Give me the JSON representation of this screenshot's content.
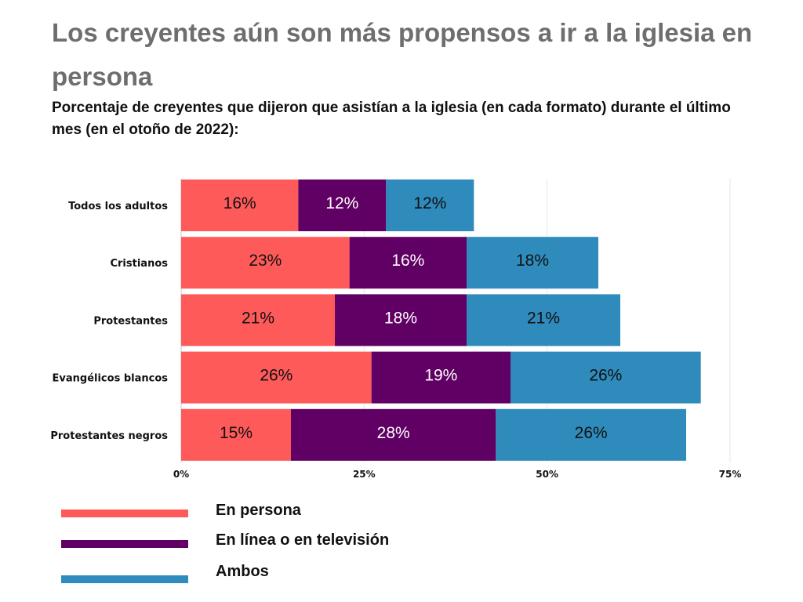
{
  "title": "Los creyentes aún son más propensos a ir a la iglesia en persona",
  "subtitle": " Porcentaje de creyentes que dijeron que asistían a la iglesia (en cada formato) durante el último mes (en el otoño de 2022):",
  "chart_data": {
    "type": "bar",
    "orientation": "horizontal",
    "stacked": true,
    "title": "Los creyentes aún son más propensos a ir a la iglesia en persona",
    "subtitle": "Porcentaje de creyentes que dijeron que asistían a la iglesia (en cada formato) durante el último mes (en el otoño de 2022):",
    "categories": [
      "Todos los adultos",
      "Cristianos",
      "Protestantes",
      "Evangélicos blancos",
      "Protestantes negros"
    ],
    "series": [
      {
        "name": "En persona",
        "color": "#ff5a5a",
        "label_color": "#111111",
        "values": [
          16,
          23,
          21,
          26,
          15
        ],
        "labels": [
          "16%",
          "23%",
          "21%",
          "26%",
          "15%"
        ]
      },
      {
        "name": "En línea o en televisión",
        "color": "#610064",
        "label_color": "#ffffff",
        "values": [
          12,
          16,
          18,
          19,
          28
        ],
        "labels": [
          "12%",
          "16%",
          "18%",
          "19%",
          "28%"
        ]
      },
      {
        "name": "Ambos",
        "color": "#2e8bbb",
        "label_color": "#111111",
        "values": [
          12,
          18,
          21,
          26,
          26
        ],
        "labels": [
          "12%",
          "18%",
          "21%",
          "26%",
          "26%"
        ]
      }
    ],
    "xlim": [
      0,
      75
    ],
    "xticks": [
      0,
      25,
      50,
      75
    ],
    "xtick_labels": [
      "0%",
      "25%",
      "50%",
      "75%"
    ],
    "xlabel": "",
    "ylabel": "",
    "grid": true,
    "legend_position": "bottom-left"
  },
  "legend": [
    {
      "label": "En persona",
      "color": "#ff5a5a"
    },
    {
      "label": "En línea o en televisión",
      "color": "#610064"
    },
    {
      "label": "Ambos",
      "color": "#2e8bbb"
    }
  ]
}
